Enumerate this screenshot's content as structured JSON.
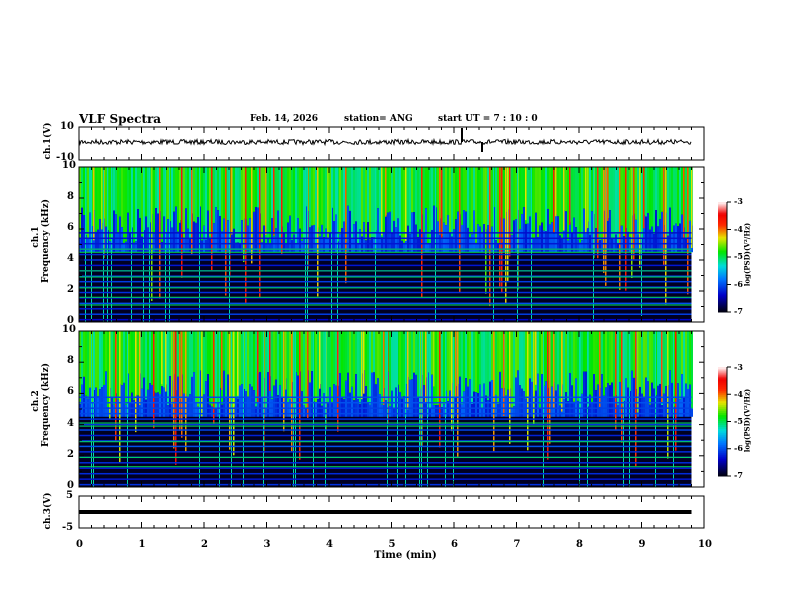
{
  "header": {
    "title": "VLF Spectra",
    "date": "Feb. 14, 2026",
    "station": "station= ANG",
    "start_ut": "start  UT =   7 : 10 : 0"
  },
  "chart_data": [
    {
      "type": "line",
      "name": "ch1 waveform",
      "ylabel": "ch.1(V)",
      "ylim": [
        -10,
        10
      ],
      "yticks": [
        "10",
        "-10"
      ],
      "xlim": [
        0,
        10
      ],
      "note_values": "noise centered near 0 V with small spikes"
    },
    {
      "type": "heatmap",
      "name": "ch1 spectrogram",
      "ylabel_top": "ch.1",
      "ylabel": "Frequency (kHz)",
      "ylim": [
        0,
        10
      ],
      "yticks": [
        "0",
        "2",
        "4",
        "6",
        "8",
        "10"
      ],
      "xlim": [
        0,
        10
      ],
      "colorbar": {
        "label": "log(PSD)(V²/Hz)",
        "range": [
          -7,
          -3
        ],
        "ticks": [
          "-3",
          "-4",
          "-5",
          "-6",
          "-7"
        ]
      }
    },
    {
      "type": "heatmap",
      "name": "ch2 spectrogram",
      "ylabel_top": "ch.2",
      "ylabel": "Frequency (kHz)",
      "ylim": [
        0,
        10
      ],
      "yticks": [
        "0",
        "2",
        "4",
        "6",
        "8",
        "10"
      ],
      "xlim": [
        0,
        10
      ],
      "colorbar": {
        "label": "log(PSD)(V²/Hz)",
        "range": [
          -7,
          -3
        ],
        "ticks": [
          "-3",
          "-4",
          "-5",
          "-6",
          "-7"
        ]
      }
    },
    {
      "type": "line",
      "name": "ch3 waveform",
      "ylabel": "ch.3(V)",
      "ylim": [
        -5,
        5
      ],
      "yticks": [
        "5",
        "-5"
      ],
      "xlim": [
        0,
        10
      ],
      "values_constant": -1.5
    }
  ],
  "xaxis": {
    "label": "Time (min)",
    "ticks": [
      "0",
      "1",
      "2",
      "3",
      "4",
      "5",
      "6",
      "7",
      "8",
      "9",
      "10"
    ],
    "data_end": 9.8
  }
}
